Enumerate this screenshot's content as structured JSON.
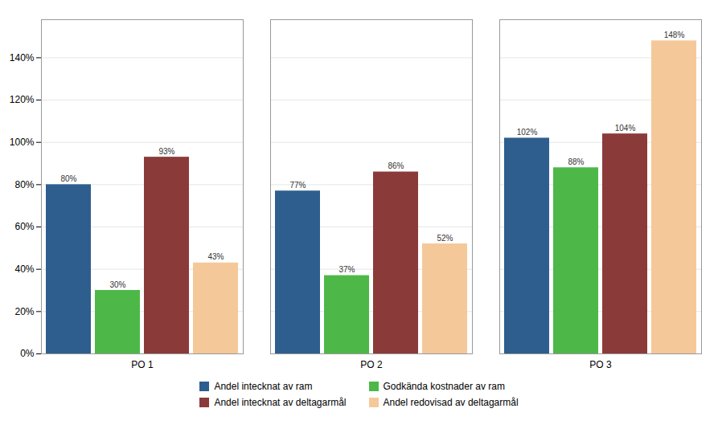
{
  "chart_data": {
    "type": "bar",
    "categories": [
      "PO 1",
      "PO 2",
      "PO 3"
    ],
    "series": [
      {
        "name": "Andel intecknat av ram",
        "color": "#2E5E8E",
        "values": [
          0.8,
          0.77,
          1.02
        ],
        "value_labels": [
          "80%",
          "77%",
          "102%"
        ]
      },
      {
        "name": "Godkända kostnader av ram",
        "color": "#4DB848",
        "values": [
          0.3,
          0.37,
          0.88
        ],
        "value_labels": [
          "30%",
          "37%",
          "88%"
        ]
      },
      {
        "name": "Andel intecknat av deltagarmål",
        "color": "#8B3A3A",
        "values": [
          0.93,
          0.86,
          1.04
        ],
        "value_labels": [
          "93%",
          "86%",
          "104%"
        ]
      },
      {
        "name": "Andel redovisad av deltagarmål",
        "color": "#F5C89A",
        "values": [
          0.43,
          0.52,
          1.48
        ],
        "value_labels": [
          "43%",
          "52%",
          "148%"
        ]
      }
    ],
    "ylim": [
      0,
      1.58
    ],
    "yticks": [
      {
        "value": 0.0,
        "label": "0%"
      },
      {
        "value": 0.2,
        "label": "20%"
      },
      {
        "value": 0.4,
        "label": "40%"
      },
      {
        "value": 0.6,
        "label": "60%"
      },
      {
        "value": 0.8,
        "label": "80%"
      },
      {
        "value": 1.0,
        "label": "100%"
      },
      {
        "value": 1.2,
        "label": "120%"
      },
      {
        "value": 1.4,
        "label": "140%"
      }
    ],
    "grid": true,
    "legend": "bottom",
    "data_labels": true
  }
}
